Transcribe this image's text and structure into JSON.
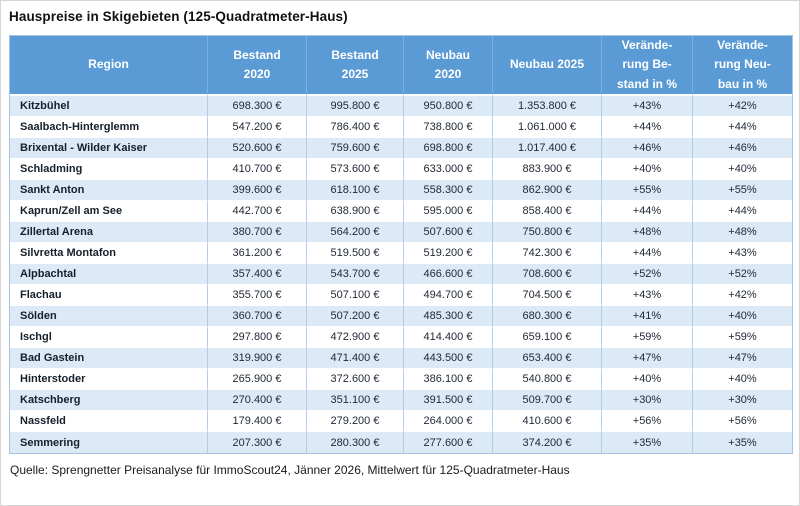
{
  "title": "Hauspreise in Skigebieten (125-Quadratmeter-Haus)",
  "source": "Quelle: Sprengnetter Preisanalyse für ImmoScout24, Jänner 2026, Mittelwert für 125-Quadratmeter-Haus",
  "colors": {
    "header_bg": "#5b9bd5",
    "header_text": "#ffffff",
    "banded_row_bg": "#dce9f6",
    "plain_row_bg": "#ffffff",
    "grid_border": "#a6c4e0",
    "cell_text": "#1f2733"
  },
  "header_display": [
    "Region",
    "Bestand\n2020",
    "Bestand\n2025",
    "Neubau\n2020",
    "Neubau 2025",
    "Verände-\nrung Be-\nstand in %",
    "Verände-\nrung Neu-\nbau in %"
  ],
  "chart_data": {
    "type": "table",
    "title": "Hauspreise in Skigebieten (125-Quadratmeter-Haus)",
    "columns": [
      "Region",
      "Bestand 2020",
      "Bestand 2025",
      "Neubau 2020",
      "Neubau 2025",
      "Veränderung Bestand in %",
      "Veränderung Neubau in %"
    ],
    "rows": [
      [
        "Kitzbühel",
        "698.300 €",
        "995.800 €",
        "950.800 €",
        "1.353.800 €",
        "+43%",
        "+42%"
      ],
      [
        "Saalbach-Hinterglemm",
        "547.200 €",
        "786.400 €",
        "738.800 €",
        "1.061.000 €",
        "+44%",
        "+44%"
      ],
      [
        "Brixental - Wilder Kaiser",
        "520.600 €",
        "759.600 €",
        "698.800 €",
        "1.017.400 €",
        "+46%",
        "+46%"
      ],
      [
        "Schladming",
        "410.700 €",
        "573.600 €",
        "633.000 €",
        "883.900 €",
        "+40%",
        "+40%"
      ],
      [
        "Sankt Anton",
        "399.600 €",
        "618.100 €",
        "558.300 €",
        "862.900 €",
        "+55%",
        "+55%"
      ],
      [
        "Kaprun/Zell am See",
        "442.700 €",
        "638.900 €",
        "595.000 €",
        "858.400 €",
        "+44%",
        "+44%"
      ],
      [
        "Zillertal Arena",
        "380.700 €",
        "564.200 €",
        "507.600 €",
        "750.800 €",
        "+48%",
        "+48%"
      ],
      [
        "Silvretta Montafon",
        "361.200 €",
        "519.500 €",
        "519.200 €",
        "742.300 €",
        "+44%",
        "+43%"
      ],
      [
        "Alpbachtal",
        "357.400 €",
        "543.700 €",
        "466.600 €",
        "708.600 €",
        "+52%",
        "+52%"
      ],
      [
        "Flachau",
        "355.700 €",
        "507.100 €",
        "494.700 €",
        "704.500 €",
        "+43%",
        "+42%"
      ],
      [
        "Sölden",
        "360.700 €",
        "507.200 €",
        "485.300 €",
        "680.300 €",
        "+41%",
        "+40%"
      ],
      [
        "Ischgl",
        "297.800 €",
        "472.900 €",
        "414.400 €",
        "659.100 €",
        "+59%",
        "+59%"
      ],
      [
        "Bad Gastein",
        "319.900 €",
        "471.400 €",
        "443.500 €",
        "653.400 €",
        "+47%",
        "+47%"
      ],
      [
        "Hinterstoder",
        "265.900 €",
        "372.600 €",
        "386.100 €",
        "540.800 €",
        "+40%",
        "+40%"
      ],
      [
        "Katschberg",
        "270.400 €",
        "351.100 €",
        "391.500 €",
        "509.700 €",
        "+30%",
        "+30%"
      ],
      [
        "Nassfeld",
        "179.400 €",
        "279.200 €",
        "264.000 €",
        "410.600 €",
        "+56%",
        "+56%"
      ],
      [
        "Semmering",
        "207.300 €",
        "280.300 €",
        "277.600 €",
        "374.200 €",
        "+35%",
        "+35%"
      ]
    ]
  }
}
